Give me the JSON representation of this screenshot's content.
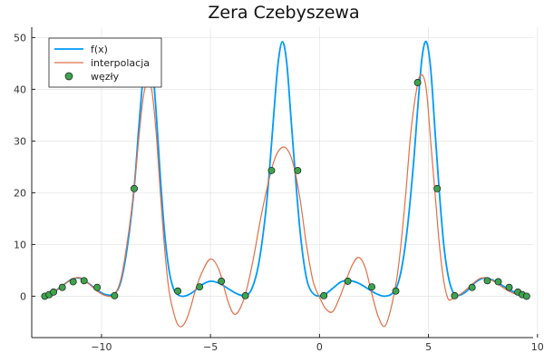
{
  "chart_data": {
    "type": "line",
    "title": "Zera Czebyszewa",
    "xlabel": "",
    "ylabel": "",
    "xlim": [
      -13.2,
      9.8
    ],
    "ylim": [
      -8,
      52
    ],
    "xticks": [
      -10,
      -5,
      0,
      5,
      10
    ],
    "xtick_labels": [
      "−10",
      "−5",
      "0",
      "5",
      "10"
    ],
    "yticks": [
      0,
      10,
      20,
      30,
      40,
      50
    ],
    "ytick_labels": [
      "0",
      "10",
      "20",
      "30",
      "40",
      "50"
    ],
    "grid": true,
    "legend": {
      "position": "top-left"
    },
    "series": [
      {
        "name": "f(x)",
        "kind": "line",
        "color": "#009af9",
        "x": [
          -12.6,
          -12.2,
          -11.8,
          -11.4,
          -11.0,
          -10.6,
          -10.2,
          -9.8,
          -9.4,
          -9.1,
          -8.8,
          -8.5,
          -8.3,
          -8.1,
          -7.9,
          -7.7,
          -7.5,
          -7.3,
          -7.1,
          -6.9,
          -6.7,
          -6.5,
          -6.2,
          -5.8,
          -5.4,
          -5.0,
          -4.6,
          -4.2,
          -3.8,
          -3.4,
          -3.1,
          -2.8,
          -2.5,
          -2.3,
          -2.1,
          -1.9,
          -1.7,
          -1.5,
          -1.3,
          -1.1,
          -0.9,
          -0.7,
          -0.5,
          -0.2,
          0.2,
          0.6,
          1.0,
          1.4,
          1.8,
          2.2,
          2.6,
          3.0,
          3.4,
          3.7,
          4.0,
          4.3,
          4.5,
          4.7,
          4.9,
          5.1,
          5.3,
          5.5,
          5.7,
          5.9,
          6.1,
          6.3,
          6.7,
          7.1,
          7.5,
          7.9,
          8.3,
          8.7,
          9.1,
          9.5
        ],
        "y": [
          0.1,
          0.8,
          2.0,
          3.2,
          3.5,
          2.5,
          1.2,
          0.3,
          0.5,
          3.0,
          10.0,
          21.0,
          32.0,
          42.0,
          49.2,
          46.0,
          36.0,
          23.0,
          12.0,
          5.0,
          1.5,
          0.3,
          0.0,
          0.8,
          2.2,
          2.9,
          2.5,
          1.5,
          0.5,
          0.1,
          1.5,
          6.0,
          15.0,
          24.0,
          35.0,
          45.0,
          49.2,
          45.0,
          34.0,
          23.0,
          13.0,
          6.0,
          2.0,
          0.2,
          0.2,
          1.5,
          2.8,
          3.0,
          2.5,
          1.5,
          0.5,
          0.0,
          0.8,
          4.0,
          12.0,
          25.0,
          36.0,
          46.0,
          49.2,
          44.0,
          32.0,
          20.0,
          10.0,
          4.0,
          1.0,
          0.1,
          0.8,
          2.5,
          3.5,
          3.2,
          2.3,
          1.3,
          0.5,
          0.1
        ]
      },
      {
        "name": "interpolacja",
        "kind": "line",
        "color": "#e26f46",
        "x": [
          -12.6,
          -12.2,
          -11.8,
          -11.4,
          -11.0,
          -10.6,
          -10.2,
          -9.8,
          -9.4,
          -9.1,
          -8.8,
          -8.5,
          -8.3,
          -8.1,
          -7.9,
          -7.7,
          -7.5,
          -7.3,
          -7.1,
          -6.9,
          -6.7,
          -6.5,
          -6.3,
          -6.1,
          -5.9,
          -5.7,
          -5.4,
          -5.0,
          -4.6,
          -4.2,
          -3.9,
          -3.6,
          -3.3,
          -3.0,
          -2.7,
          -2.4,
          -2.1,
          -1.8,
          -1.5,
          -1.2,
          -0.9,
          -0.6,
          -0.3,
          0.0,
          0.3,
          0.6,
          0.9,
          1.2,
          1.5,
          1.8,
          2.1,
          2.4,
          2.7,
          3.0,
          3.3,
          3.6,
          3.9,
          4.2,
          4.5,
          4.7,
          4.9,
          5.1,
          5.3,
          5.5,
          5.7,
          5.9,
          6.1,
          6.3,
          6.6,
          7.0,
          7.4,
          7.8,
          8.2,
          8.6,
          9.0,
          9.4
        ],
        "y": [
          0.1,
          0.8,
          2.0,
          3.2,
          3.6,
          2.5,
          1.0,
          0.1,
          0.3,
          3.5,
          11.0,
          21.0,
          30.0,
          38.0,
          41.5,
          40.0,
          32.0,
          20.0,
          9.0,
          1.0,
          -3.0,
          -5.5,
          -5.8,
          -4.5,
          -2.0,
          1.0,
          4.5,
          7.2,
          5.0,
          -1.0,
          -3.5,
          -2.0,
          2.0,
          8.0,
          15.0,
          21.0,
          26.0,
          28.5,
          28.5,
          25.5,
          19.0,
          10.0,
          3.0,
          -0.2,
          -2.5,
          -3.0,
          -0.5,
          2.8,
          6.0,
          7.5,
          5.5,
          0.5,
          -4.0,
          -5.8,
          -2.0,
          5.0,
          17.0,
          32.0,
          41.0,
          42.8,
          40.0,
          30.0,
          20.0,
          10.0,
          3.0,
          -0.5,
          -0.5,
          0.0,
          0.8,
          2.3,
          3.5,
          3.3,
          2.3,
          1.2,
          0.4,
          0.0
        ]
      },
      {
        "name": "węzły",
        "kind": "scatter",
        "color": "#3da44d",
        "x": [
          -12.6,
          -12.4,
          -12.2,
          -11.8,
          -11.3,
          -10.8,
          -10.2,
          -9.4,
          -8.5,
          -7.9,
          -6.5,
          -5.5,
          -4.5,
          -3.4,
          -2.2,
          -1.0,
          0.2,
          1.3,
          2.4,
          3.5,
          4.5,
          5.4,
          6.2,
          7.0,
          7.7,
          8.2,
          8.7,
          9.1,
          9.3,
          9.5
        ],
        "y": [
          0.0,
          0.3,
          0.8,
          1.7,
          2.8,
          3.0,
          1.7,
          0.1,
          20.8,
          46.0,
          1.0,
          1.8,
          2.9,
          0.1,
          24.3,
          24.3,
          0.1,
          2.9,
          1.8,
          1.0,
          41.3,
          20.8,
          0.1,
          1.7,
          3.0,
          2.8,
          1.7,
          0.8,
          0.3,
          0.0
        ]
      }
    ]
  }
}
